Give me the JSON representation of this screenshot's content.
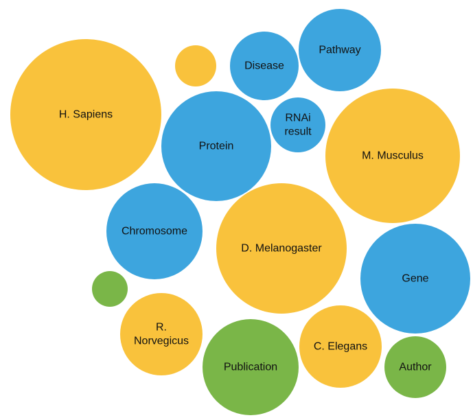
{
  "colors": {
    "organism": "#F9C23C",
    "entity": "#3DA5DE",
    "literature": "#7AB648"
  },
  "bubbles": [
    {
      "id": "h-sapiens",
      "lines": [
        "H. Sapiens"
      ],
      "group": "organism"
    },
    {
      "id": "unlabeled-yellow",
      "lines": [],
      "group": "organism"
    },
    {
      "id": "disease",
      "lines": [
        "Disease"
      ],
      "group": "entity"
    },
    {
      "id": "pathway",
      "lines": [
        "Pathway"
      ],
      "group": "entity"
    },
    {
      "id": "protein",
      "lines": [
        "Protein"
      ],
      "group": "entity"
    },
    {
      "id": "rnai-result",
      "lines": [
        "RNAi",
        "result"
      ],
      "group": "entity"
    },
    {
      "id": "m-musculus",
      "lines": [
        "M. Musculus"
      ],
      "group": "organism"
    },
    {
      "id": "chromosome",
      "lines": [
        "Chromosome"
      ],
      "group": "entity"
    },
    {
      "id": "d-melanogaster",
      "lines": [
        "D. Melanogaster"
      ],
      "group": "organism"
    },
    {
      "id": "gene",
      "lines": [
        "Gene"
      ],
      "group": "entity"
    },
    {
      "id": "unlabeled-green",
      "lines": [],
      "group": "literature"
    },
    {
      "id": "r-norvegicus",
      "lines": [
        "R.",
        "Norvegicus"
      ],
      "group": "organism"
    },
    {
      "id": "publication",
      "lines": [
        "Publication"
      ],
      "group": "literature"
    },
    {
      "id": "c-elegans",
      "lines": [
        "C. Elegans"
      ],
      "group": "organism"
    },
    {
      "id": "author",
      "lines": [
        "Author"
      ],
      "group": "literature"
    }
  ]
}
